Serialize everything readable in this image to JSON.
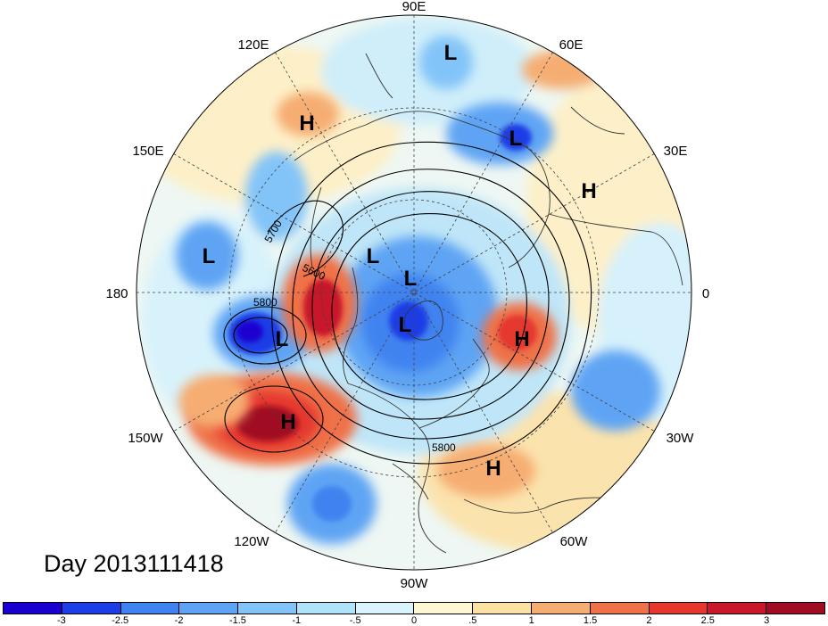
{
  "title": "",
  "timestamp": "Day 2013111418",
  "longitude_labels": {
    "lon_90e": "90E",
    "lon_60e": "60E",
    "lon_30e": "30E",
    "lon_0": "0",
    "lon_30w": "30W",
    "lon_60w": "60W",
    "lon_90w": "90W",
    "lon_120w": "120W",
    "lon_150w": "150W",
    "lon_180": "180",
    "lon_150e": "150E",
    "lon_120e": "120E"
  },
  "contour_labels": [
    "5700",
    "5600",
    "5800",
    "5800"
  ],
  "pressure_centers": [
    {
      "type": "L",
      "region": "Central Asia"
    },
    {
      "type": "L",
      "region": "Western Russia"
    },
    {
      "type": "H",
      "region": "Northeast Asia"
    },
    {
      "type": "H",
      "region": "Eastern Europe"
    },
    {
      "type": "L",
      "region": "Kamchatka"
    },
    {
      "type": "L",
      "region": "Arctic"
    },
    {
      "type": "L",
      "region": "Arctic Canada"
    },
    {
      "type": "L",
      "region": "Bering Sea"
    },
    {
      "type": "L",
      "region": "Hudson Bay"
    },
    {
      "type": "H",
      "region": "Labrador Sea"
    },
    {
      "type": "H",
      "region": "Northeast Pacific"
    },
    {
      "type": "H",
      "region": "Western Atlantic"
    }
  ],
  "colorbar": {
    "ticks": [
      "-3",
      "-2.5",
      "-2",
      "-1.5",
      "-1",
      "-.5",
      "0",
      ".5",
      "1",
      "1.5",
      "2",
      "2.5",
      "3"
    ],
    "colors": [
      "#1a00d0",
      "#1d3de6",
      "#3f83f0",
      "#5fa4f4",
      "#83c4f8",
      "#aee3fa",
      "#d9f4fd",
      "#fdf7d4",
      "#fbe1a2",
      "#f6ad72",
      "#ef7147",
      "#e5372e",
      "#c8182a",
      "#a00c23"
    ]
  },
  "colors": {
    "strong_negative": "#1a00d0",
    "strong_positive": "#a00c23",
    "neutral": "#fdf7d4"
  }
}
